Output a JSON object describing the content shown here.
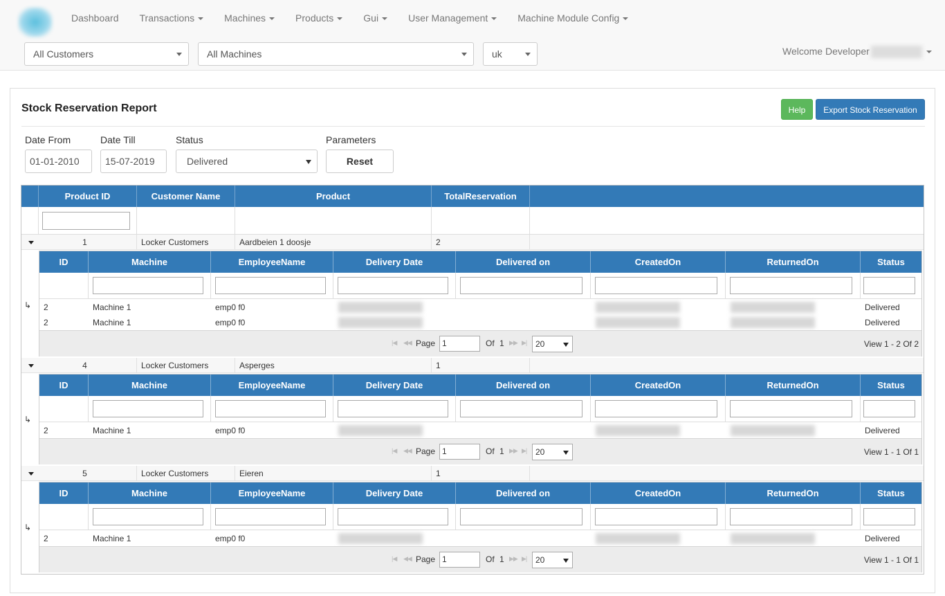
{
  "nav": {
    "items": [
      {
        "label": "Dashboard",
        "dropdown": false
      },
      {
        "label": "Transactions",
        "dropdown": true
      },
      {
        "label": "Machines",
        "dropdown": true
      },
      {
        "label": "Products",
        "dropdown": true
      },
      {
        "label": "Gui",
        "dropdown": true
      },
      {
        "label": "User Management",
        "dropdown": true
      },
      {
        "label": "Machine Module Config",
        "dropdown": true
      }
    ],
    "customer_select": "All Customers",
    "machine_select": "All Machines",
    "language_select": "uk",
    "welcome": "Welcome Developer"
  },
  "report": {
    "title": "Stock Reservation Report",
    "help_label": "Help",
    "export_label": "Export Stock Reservation",
    "filters": {
      "date_from_label": "Date From",
      "date_from_value": "01-01-2010",
      "date_till_label": "Date Till",
      "date_till_value": "15-07-2019",
      "status_label": "Status",
      "status_value": "Delivered",
      "parameters_label": "Parameters",
      "reset_label": "Reset"
    }
  },
  "grid": {
    "columns": [
      "Product ID",
      "Customer Name",
      "Product",
      "TotalReservation"
    ],
    "sub_columns": [
      "ID",
      "Machine",
      "EmployeeName",
      "Delivery Date",
      "Delivered on",
      "CreatedOn",
      "ReturnedOn",
      "Status"
    ],
    "groups": [
      {
        "product_id": "1",
        "customer": "Locker Customers",
        "product": "Aardbeien 1 doosje",
        "total": "2",
        "rows": [
          {
            "id": "2",
            "machine": "Machine 1",
            "employee": "emp0 f0",
            "status": "Delivered"
          },
          {
            "id": "2",
            "machine": "Machine 1",
            "employee": "emp0 f0",
            "status": "Delivered"
          }
        ],
        "pager": {
          "page_label": "Page",
          "page": "1",
          "of_label": "Of",
          "total_pages": "1",
          "page_size": "20",
          "view": "View 1 - 2 Of 2"
        }
      },
      {
        "product_id": "4",
        "customer": "Locker Customers",
        "product": "Asperges",
        "total": "1",
        "rows": [
          {
            "id": "2",
            "machine": "Machine 1",
            "employee": "emp0 f0",
            "status": "Delivered"
          }
        ],
        "pager": {
          "page_label": "Page",
          "page": "1",
          "of_label": "Of",
          "total_pages": "1",
          "page_size": "20",
          "view": "View 1 - 1 Of 1"
        }
      },
      {
        "product_id": "5",
        "customer": "Locker Customers",
        "product": "Eieren",
        "total": "1",
        "rows": [
          {
            "id": "2",
            "machine": "Machine 1",
            "employee": "emp0 f0",
            "status": "Delivered"
          }
        ],
        "pager": {
          "page_label": "Page",
          "page": "1",
          "of_label": "Of",
          "total_pages": "1",
          "page_size": "20",
          "view": "View 1 - 1 Of 1"
        }
      }
    ]
  },
  "colors": {
    "primary": "#337ab7",
    "success": "#5cb85c",
    "navbar_bg": "#f8f8f8"
  }
}
